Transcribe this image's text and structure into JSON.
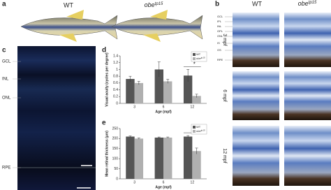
{
  "panel_labels": [
    "a",
    "b",
    "c",
    "d",
    "e"
  ],
  "genotypes": [
    {
      "name": "WT"
    },
    {
      "name": "obe",
      "sup": "tp15"
    }
  ],
  "panel_b": {
    "rows": [
      "3 mpf",
      "6 mpf",
      "12 mpf"
    ],
    "layers": [
      "GCL",
      "IPL",
      "INL",
      "OPL",
      "ONL",
      "IS",
      "OS",
      "RPE"
    ]
  },
  "panel_c": {
    "layers": [
      "GCL",
      "INL",
      "ONL",
      "RPE"
    ]
  },
  "chart_data": [
    {
      "type": "bar",
      "ylabel": "Visual acuity (cycles per degree)",
      "xlabel": "Age (mpf)",
      "categories": [
        "3",
        "6",
        "12"
      ],
      "series": [
        {
          "name": "WT",
          "color": "#555555",
          "values": [
            0.72,
            1.0,
            0.82
          ],
          "errors": [
            0.08,
            0.22,
            0.18
          ]
        },
        {
          "name": "obe",
          "name_sup": "tp15",
          "color": "#b0b0b0",
          "values": [
            0.6,
            0.65,
            0.22
          ],
          "errors": [
            0.05,
            0.06,
            0.05
          ]
        }
      ],
      "ylim": [
        0,
        1.4
      ],
      "yticks": [
        0,
        0.2,
        0.4,
        0.6,
        0.8,
        1,
        1.2,
        1.4
      ],
      "annotation": "*"
    },
    {
      "type": "bar",
      "ylabel": "Mean retinal thickness (μm)",
      "xlabel": "Age (mpf)",
      "categories": [
        "3",
        "6",
        "12"
      ],
      "series": [
        {
          "name": "WT",
          "color": "#555555",
          "values": [
            210,
            205,
            210
          ],
          "errors": [
            3,
            3,
            5
          ]
        },
        {
          "name": "obe",
          "name_sup": "tp15",
          "color": "#b0b0b0",
          "values": [
            200,
            205,
            138
          ],
          "errors": [
            3,
            3,
            15
          ]
        }
      ],
      "ylim": [
        0,
        250
      ],
      "yticks": [
        0,
        50,
        100,
        150,
        200,
        250
      ],
      "annotation": "**"
    }
  ]
}
